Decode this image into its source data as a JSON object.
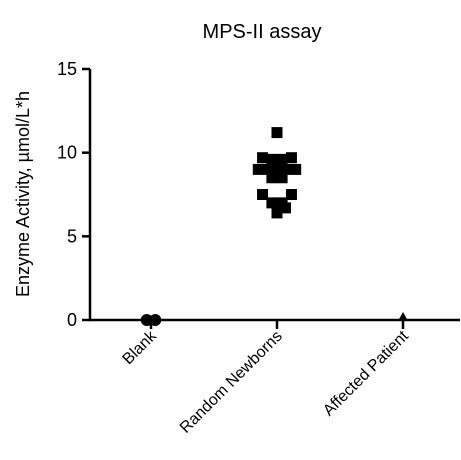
{
  "chart_data": {
    "type": "scatter",
    "title": "MPS-II assay",
    "xlabel": "",
    "ylabel": "Enzyme Activity, µmol/L*h",
    "ylim": [
      0,
      15
    ],
    "yticks": [
      0,
      5,
      10,
      15
    ],
    "categories": [
      "Blank",
      "Random Newborns",
      "Affected Patient"
    ],
    "grid": false,
    "legend": "none",
    "series": [
      {
        "category": "Blank",
        "marker": "circle",
        "points": [
          {
            "offset": -0.5,
            "y": 0
          },
          {
            "offset": 0.5,
            "y": 0
          }
        ]
      },
      {
        "category": "Random Newborns",
        "marker": "square",
        "points": [
          {
            "offset": 0.0,
            "y": 11.2
          },
          {
            "offset": -1.7,
            "y": 9.7
          },
          {
            "offset": -0.6,
            "y": 9.6
          },
          {
            "offset": 0.6,
            "y": 9.6
          },
          {
            "offset": 1.7,
            "y": 9.7
          },
          {
            "offset": -2.2,
            "y": 9.0
          },
          {
            "offset": -1.1,
            "y": 9.0
          },
          {
            "offset": 0.0,
            "y": 9.0
          },
          {
            "offset": 1.1,
            "y": 9.0
          },
          {
            "offset": 2.2,
            "y": 9.0
          },
          {
            "offset": -0.6,
            "y": 8.5
          },
          {
            "offset": 0.6,
            "y": 8.5
          },
          {
            "offset": -1.7,
            "y": 7.5
          },
          {
            "offset": 1.7,
            "y": 7.5
          },
          {
            "offset": -0.6,
            "y": 7.0
          },
          {
            "offset": 0.6,
            "y": 7.0
          },
          {
            "offset": 1.0,
            "y": 6.7
          },
          {
            "offset": 0.0,
            "y": 6.4
          }
        ]
      },
      {
        "category": "Affected Patient",
        "marker": "triangle",
        "points": [
          {
            "offset": 0.0,
            "y": 0
          }
        ]
      }
    ],
    "colors": {
      "marker": "#000000",
      "axis": "#000000",
      "text": "#000000"
    }
  }
}
